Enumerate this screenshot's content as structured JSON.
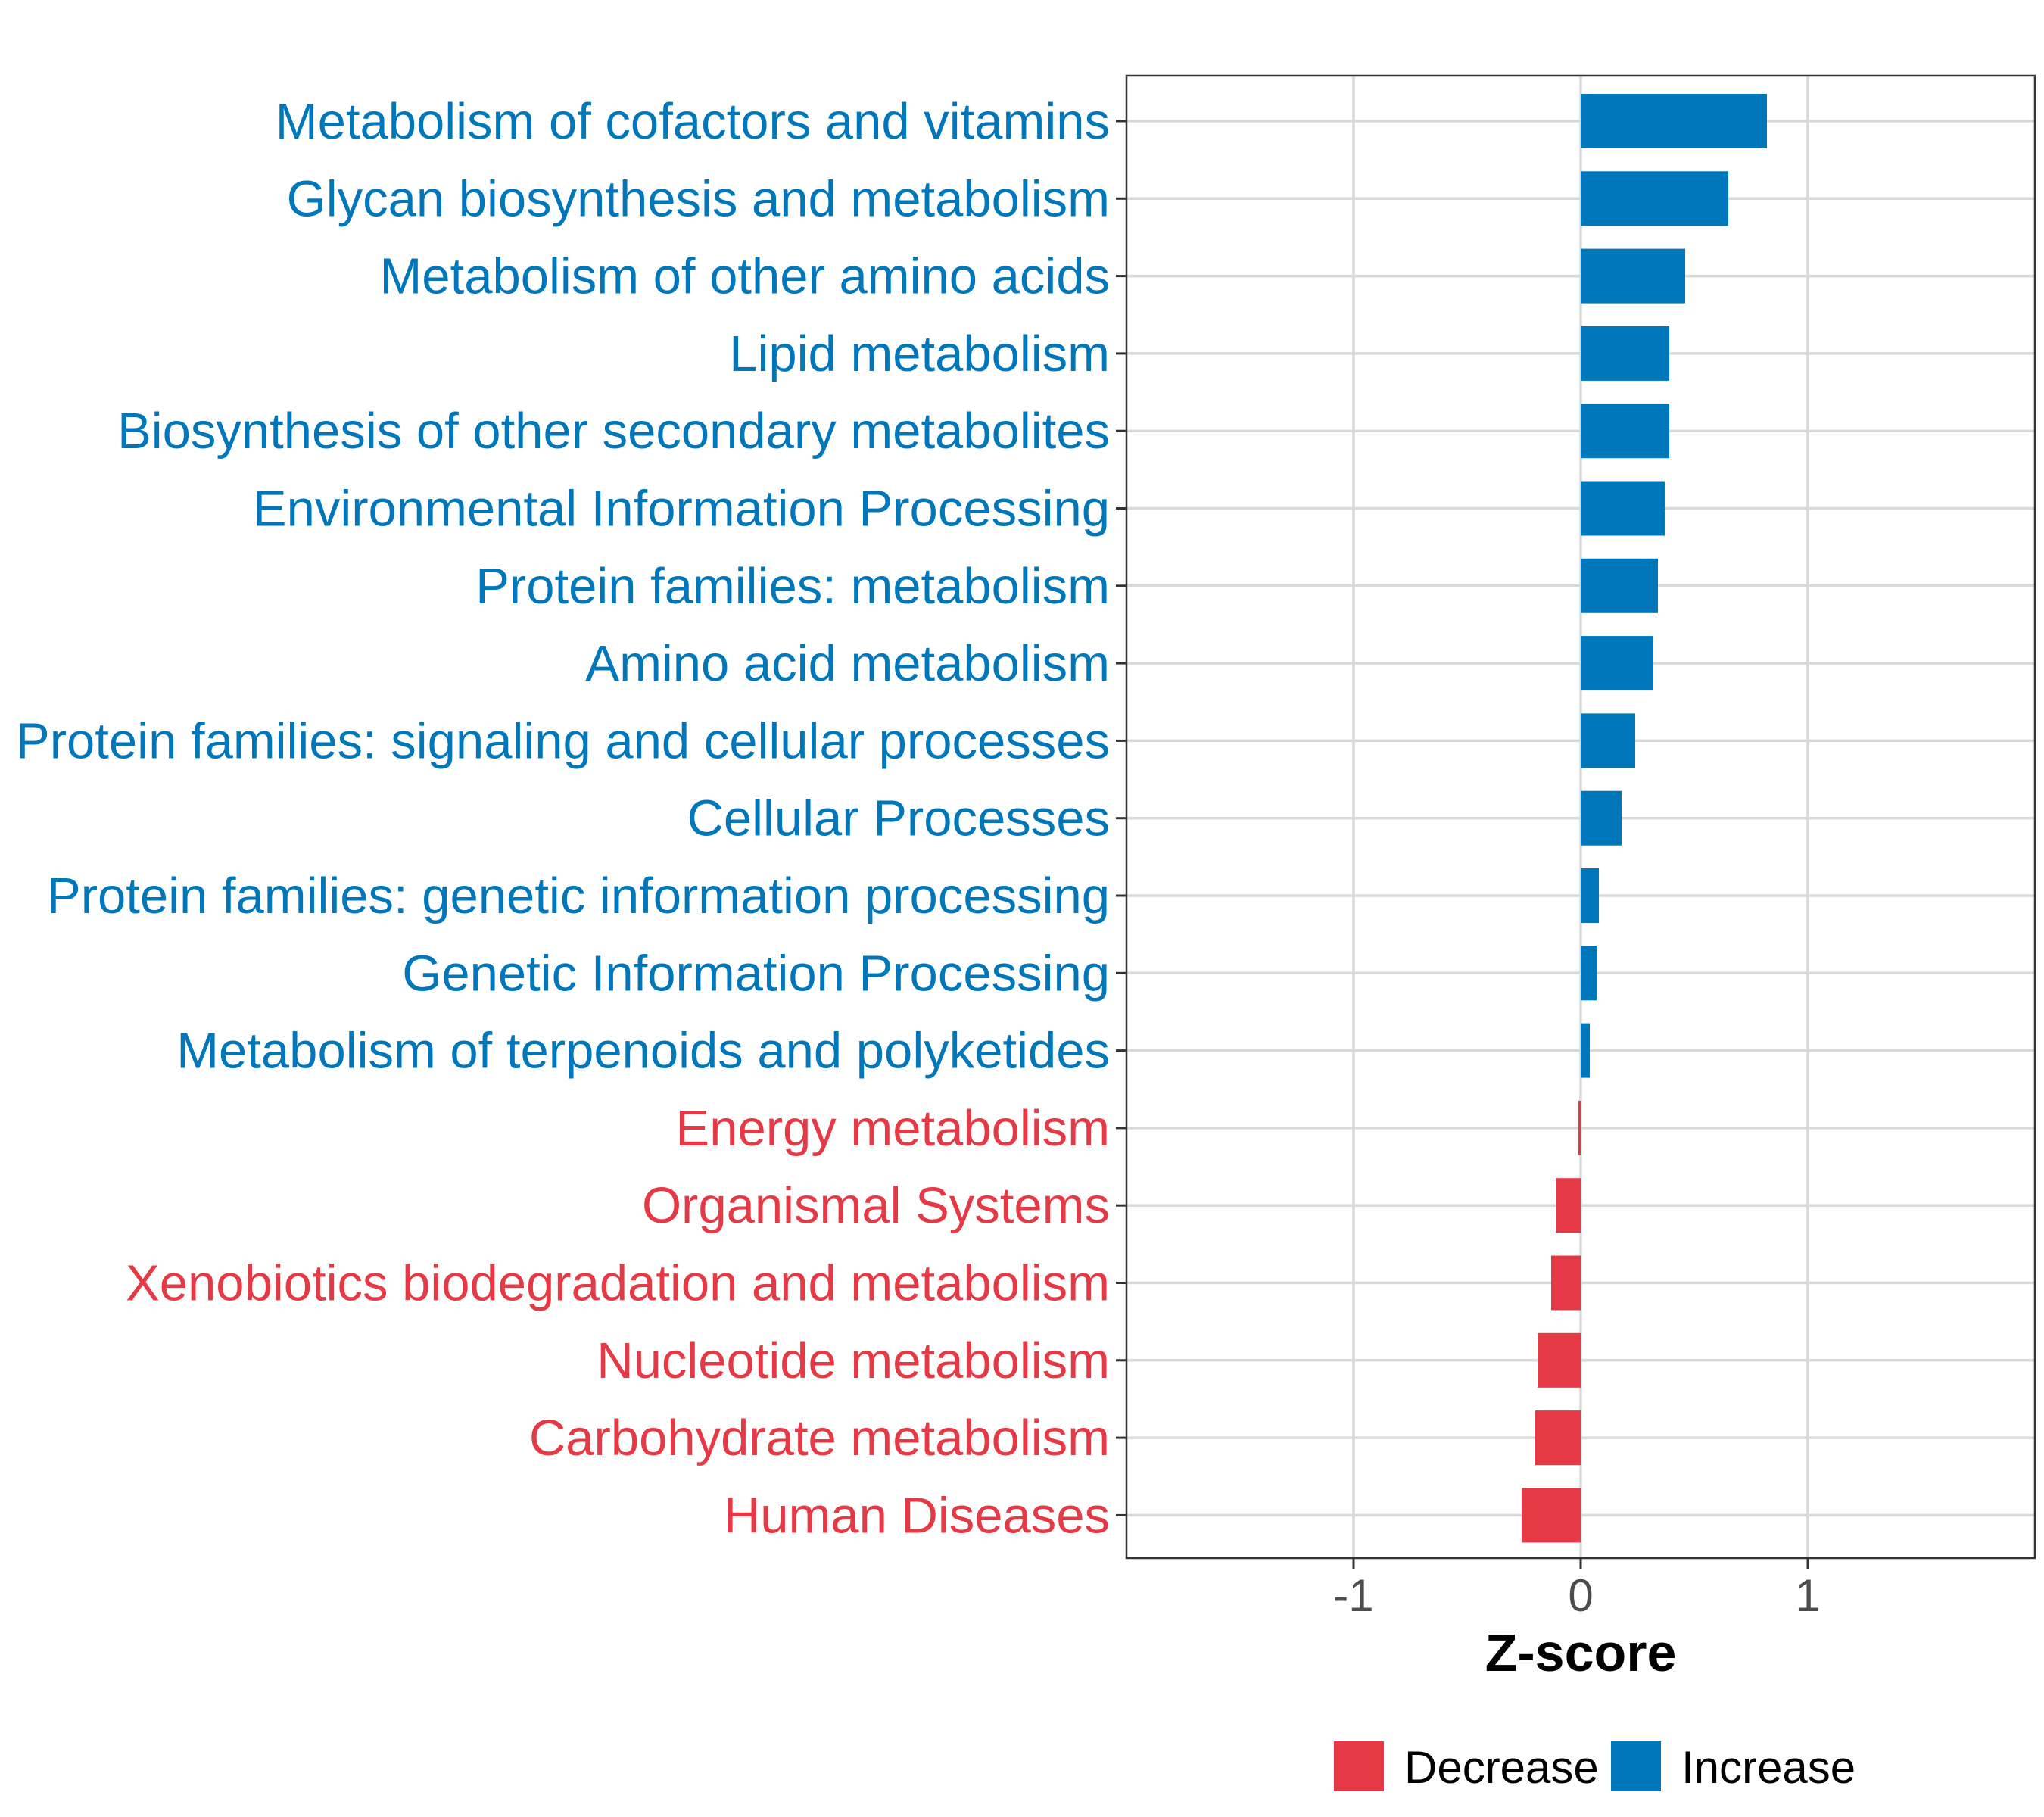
{
  "colors": {
    "increase": "#0077BB",
    "decrease": "#E63946",
    "grid": "#D9D9D9",
    "panel_border": "#333333",
    "tick_text": "#4D4D4D"
  },
  "chart_data": {
    "type": "bar",
    "orientation": "horizontal",
    "title": "",
    "xlabel": "Z-score",
    "ylabel": "",
    "xlim": [
      -2.0,
      2.0
    ],
    "x_ticks": [
      -1,
      0,
      1
    ],
    "x_tick_labels": [
      "-1",
      "0",
      "1"
    ],
    "grid": true,
    "legend_position": "bottom",
    "categories": [
      "Metabolism of cofactors and vitamins",
      "Glycan biosynthesis and metabolism",
      "Metabolism of other amino acids",
      "Lipid metabolism",
      "Biosynthesis of other secondary metabolites",
      "Environmental Information Processing",
      "Protein families: metabolism",
      "Amino acid metabolism",
      "Protein families: signaling and cellular processes",
      "Cellular Processes",
      "Protein families: genetic information processing",
      "Genetic Information Processing",
      "Metabolism of terpenoids and polyketides",
      "Energy metabolism",
      "Organismal Systems",
      "Xenobiotics biodegradation and metabolism",
      "Nucleotide metabolism",
      "Carbohydrate metabolism",
      "Human Diseases"
    ],
    "values": [
      0.82,
      0.65,
      0.46,
      0.39,
      0.39,
      0.37,
      0.34,
      0.32,
      0.24,
      0.18,
      0.08,
      0.07,
      0.04,
      -0.01,
      -0.11,
      -0.13,
      -0.19,
      -0.2,
      -0.26
    ],
    "groups": [
      "Increase",
      "Increase",
      "Increase",
      "Increase",
      "Increase",
      "Increase",
      "Increase",
      "Increase",
      "Increase",
      "Increase",
      "Increase",
      "Increase",
      "Increase",
      "Decrease",
      "Decrease",
      "Decrease",
      "Decrease",
      "Decrease",
      "Decrease"
    ],
    "legend": [
      {
        "label": "Decrease",
        "color": "#E63946"
      },
      {
        "label": "Increase",
        "color": "#0077BB"
      }
    ]
  }
}
